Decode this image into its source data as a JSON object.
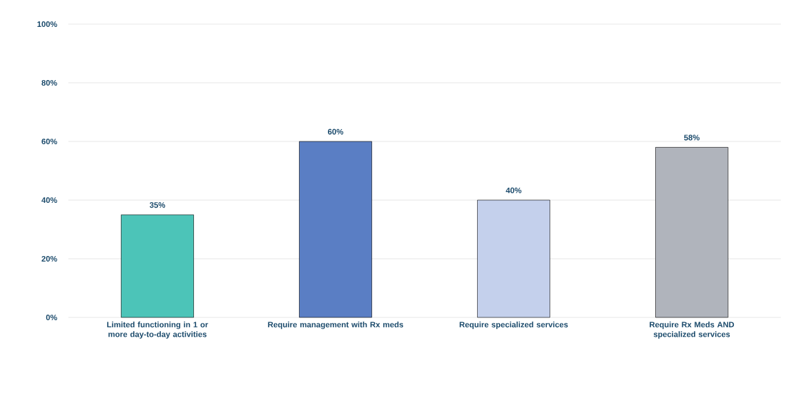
{
  "chart_data": {
    "type": "bar",
    "categories": [
      "Limited functioning in 1 or more day-to-day activities",
      "Require management with Rx meds",
      "Require specialized services",
      "Require Rx Meds AND specialized services"
    ],
    "values": [
      35,
      60,
      40,
      58
    ],
    "colors": [
      "#4cc4b8",
      "#5a7ec4",
      "#c4d0ec",
      "#b0b4bc"
    ],
    "value_labels": [
      "35%",
      "60%",
      "40%",
      "58%"
    ],
    "ylim": [
      0,
      100
    ],
    "yticks": [
      {
        "value": 0,
        "label": "0%"
      },
      {
        "value": 20,
        "label": "20%"
      },
      {
        "value": 40,
        "label": "40%"
      },
      {
        "value": 60,
        "label": "60%"
      },
      {
        "value": 80,
        "label": "80%"
      },
      {
        "value": 100,
        "label": "100%"
      }
    ],
    "grid": "y"
  }
}
